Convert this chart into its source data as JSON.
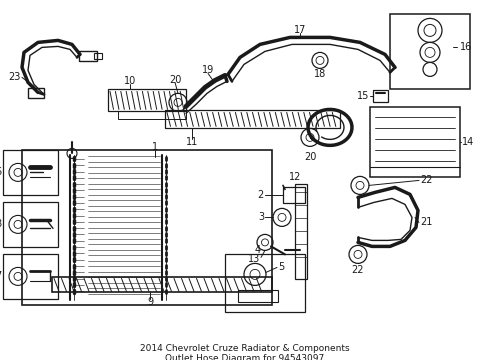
{
  "bg_color": "#ffffff",
  "line_color": "#1a1a1a",
  "title_line1": "2014 Chevrolet Cruze Radiator & Components",
  "title_line2": "Outlet Hose Diagram for 94543097",
  "title_fontsize": 6.5,
  "fig_w": 4.89,
  "fig_h": 3.6,
  "dpi": 100
}
